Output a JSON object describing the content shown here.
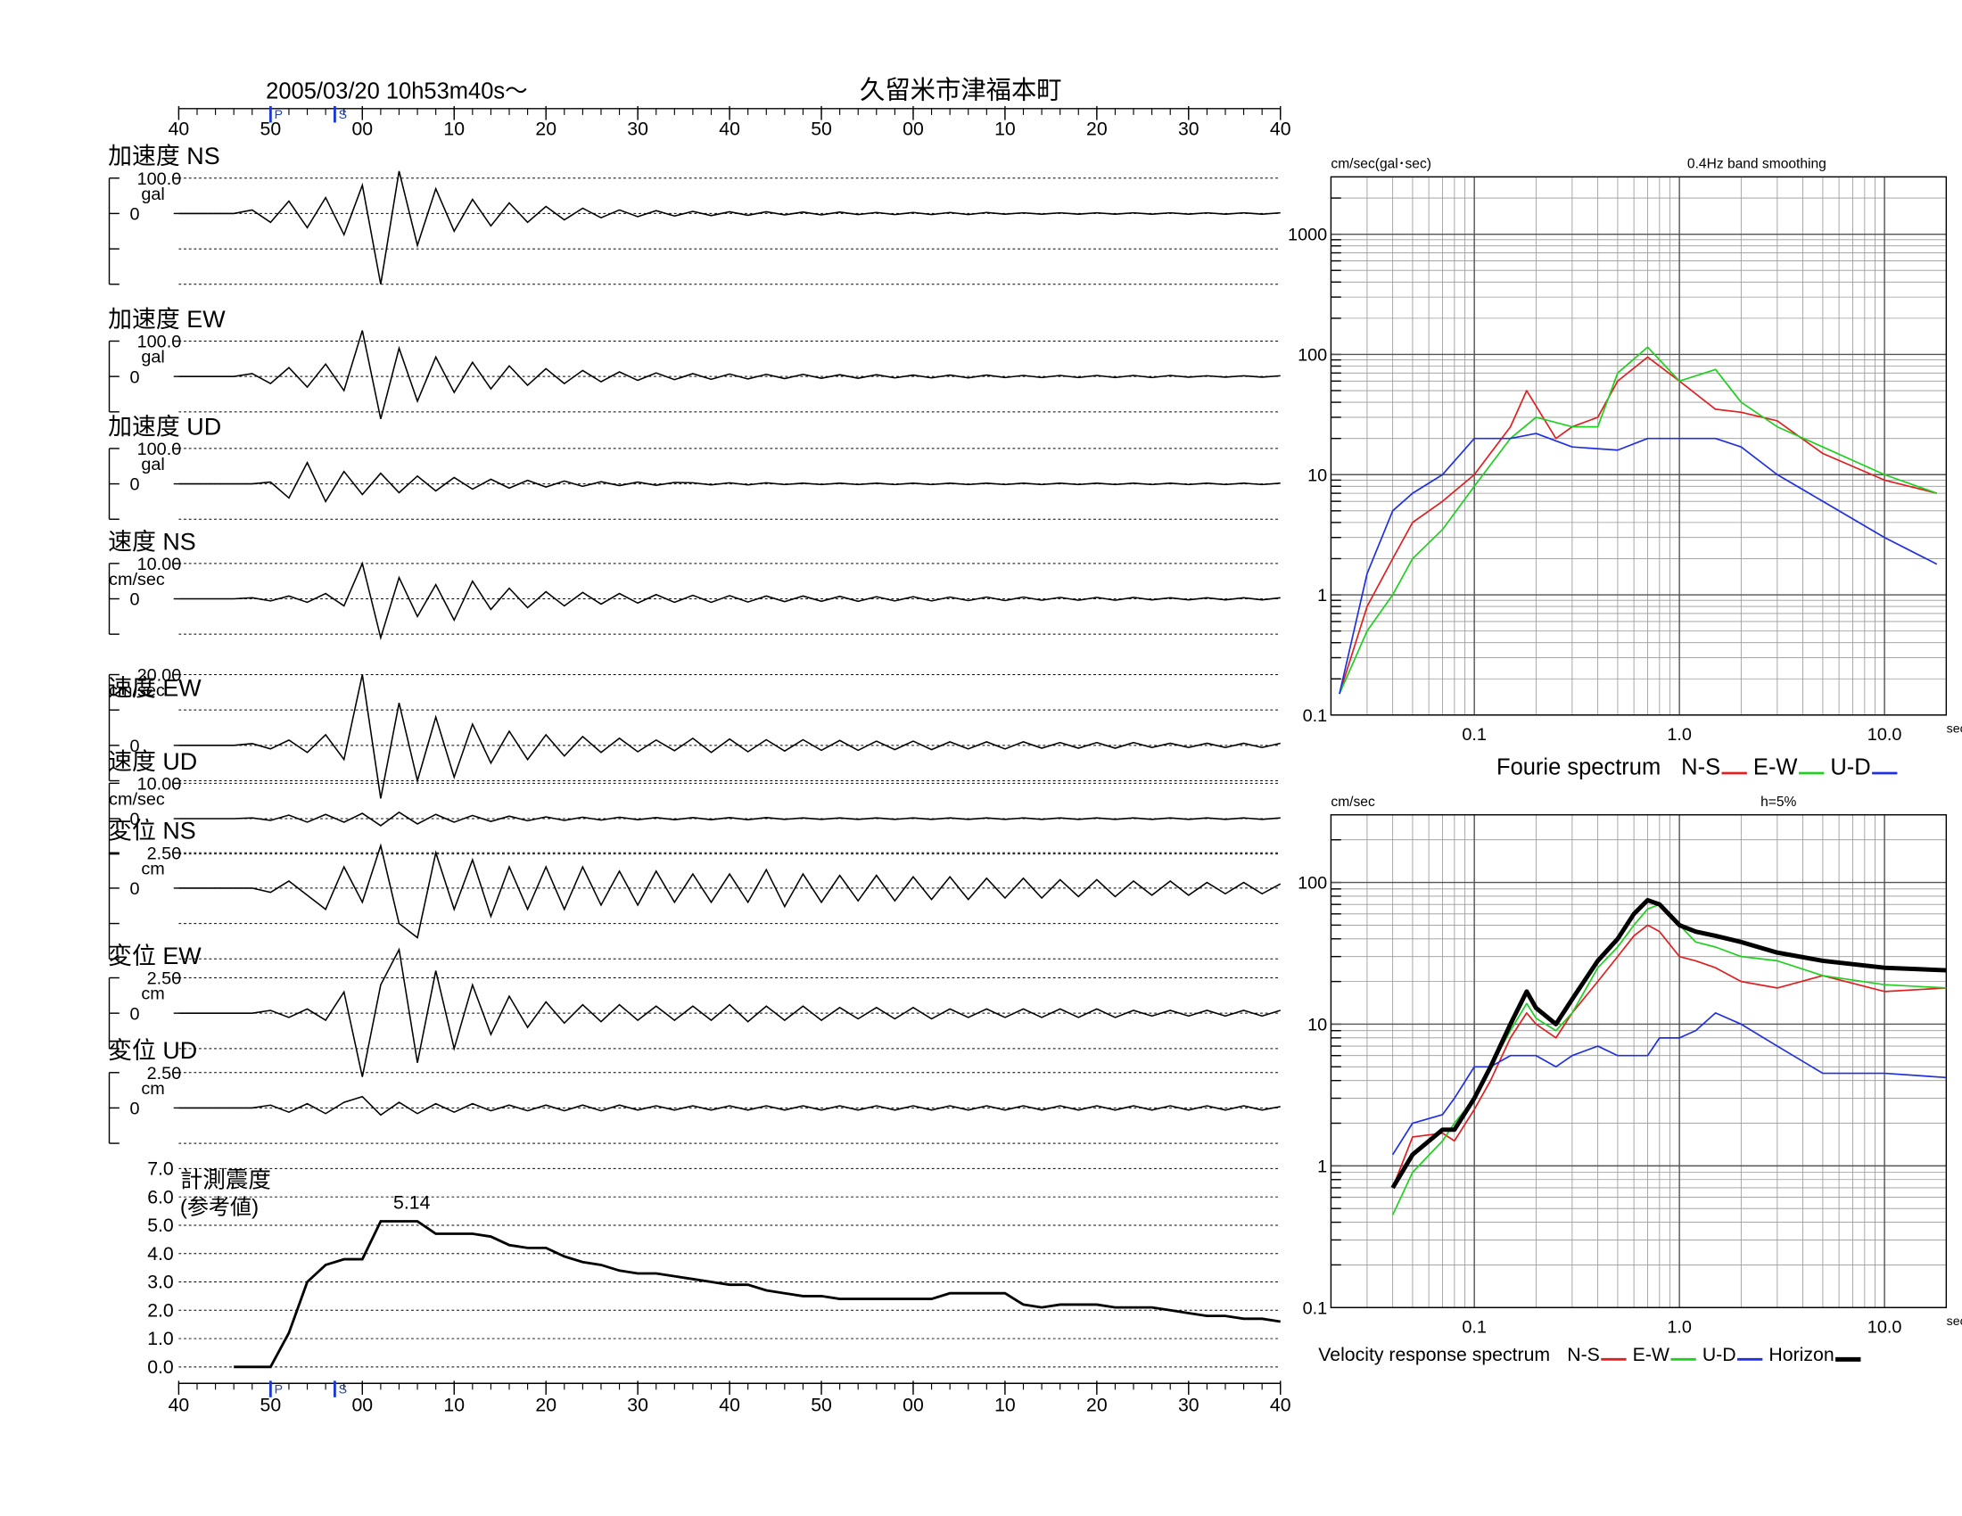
{
  "title": "2005/03/20  10h53m40s〜",
  "station": "久留米市津福本町",
  "time_axis": {
    "xlim": [
      40,
      160
    ],
    "xticks": [
      40,
      50,
      {
        "value": 60,
        "label": "00"
      },
      {
        "value": 70,
        "label": "10"
      },
      {
        "value": 80,
        "label": "20"
      },
      {
        "value": 90,
        "label": "30"
      },
      {
        "value": 100,
        "label": "40"
      },
      {
        "value": 110,
        "label": "50"
      },
      {
        "value": 120,
        "label": "00"
      },
      {
        "value": 130,
        "label": "10"
      },
      {
        "value": 140,
        "label": "20"
      },
      {
        "value": 150,
        "label": "30"
      },
      {
        "value": 160,
        "label": "40"
      }
    ],
    "x": [
      40,
      42,
      44,
      46,
      48,
      50,
      52,
      54,
      56,
      58,
      60,
      62,
      64,
      66,
      68,
      70,
      72,
      74,
      76,
      78,
      80,
      82,
      84,
      86,
      88,
      90,
      92,
      94,
      96,
      98,
      100,
      102,
      104,
      106,
      108,
      110,
      112,
      114,
      116,
      118,
      120,
      122,
      124,
      126,
      128,
      130,
      132,
      134,
      136,
      138,
      140,
      142,
      144,
      146,
      148,
      150,
      152,
      154,
      156,
      158,
      160
    ],
    "markers": [
      {
        "label": "P",
        "value": 50
      },
      {
        "label": "S",
        "value": 57
      }
    ]
  },
  "chart_data": [
    {
      "type": "wave",
      "title": "加速度 NS",
      "unit": "gal",
      "ylim": [
        -200,
        100
      ],
      "yticks": [
        {
          "value": 100,
          "label": "100.0"
        },
        0
      ],
      "values": [
        0,
        0,
        0,
        0,
        10,
        -25,
        35,
        -40,
        45,
        -60,
        80,
        -200,
        120,
        -90,
        70,
        -50,
        40,
        -35,
        30,
        -25,
        20,
        -18,
        15,
        -12,
        10,
        -9,
        8,
        -7,
        6,
        -6,
        5,
        -5,
        5,
        -4,
        4,
        -4,
        4,
        -3,
        3,
        -3,
        3,
        -3,
        3,
        -3,
        3,
        -2,
        2,
        -2,
        2,
        -2,
        2,
        -2,
        2,
        -2,
        2,
        -2,
        2,
        -2,
        2,
        -2,
        2
      ]
    },
    {
      "type": "wave",
      "title": "加速度 EW",
      "unit": "gal",
      "ylim": [
        -100,
        100
      ],
      "yticks": [
        {
          "value": 100,
          "label": "100.0"
        },
        0
      ],
      "values": [
        0,
        0,
        0,
        0,
        8,
        -20,
        25,
        -30,
        35,
        -40,
        130,
        -120,
        80,
        -70,
        55,
        -45,
        40,
        -35,
        30,
        -25,
        22,
        -20,
        17,
        -15,
        13,
        -11,
        10,
        -9,
        8,
        -8,
        7,
        -7,
        6,
        -6,
        6,
        -5,
        5,
        -5,
        5,
        -4,
        4,
        -4,
        4,
        -4,
        4,
        -3,
        3,
        -3,
        3,
        -3,
        3,
        -3,
        3,
        -3,
        3,
        -2,
        2,
        -2,
        2,
        -2,
        2
      ]
    },
    {
      "type": "wave",
      "title": "加速度 UD",
      "unit": "gal",
      "ylim": [
        -100,
        100
      ],
      "yticks": [
        {
          "value": 100,
          "label": "100.0"
        },
        0
      ],
      "values": [
        0,
        0,
        0,
        0,
        0,
        5,
        -40,
        60,
        -50,
        35,
        -30,
        30,
        -25,
        22,
        -20,
        18,
        -15,
        13,
        -12,
        10,
        -9,
        8,
        -7,
        6,
        -5,
        5,
        -4,
        4,
        3,
        -3,
        3,
        -3,
        3,
        -2,
        2,
        -2,
        2,
        -2,
        2,
        -2,
        2,
        -2,
        2,
        -2,
        2,
        -2,
        2,
        -2,
        2,
        -2,
        2,
        -2,
        2,
        -2,
        2,
        -2,
        2,
        -2,
        2,
        -2,
        2
      ]
    },
    {
      "type": "wave",
      "title": "速度 NS",
      "unit": "cm/sec",
      "ylim": [
        -10,
        10
      ],
      "yticks": [
        {
          "value": 10,
          "label": "10.00"
        },
        0
      ],
      "values": [
        0,
        0,
        0,
        0,
        0.3,
        -0.6,
        0.8,
        -1,
        1.5,
        -2,
        10,
        -11,
        6,
        -5,
        4,
        -6,
        5,
        -3,
        3,
        -2.5,
        2,
        -2,
        1.8,
        -1.5,
        1.5,
        -1.2,
        1.2,
        -1,
        1,
        -1,
        0.9,
        -0.9,
        0.8,
        -0.8,
        0.8,
        -0.7,
        0.7,
        -0.7,
        0.6,
        -0.6,
        0.6,
        -0.6,
        0.5,
        -0.5,
        0.5,
        -0.5,
        0.5,
        -0.4,
        0.4,
        -0.4,
        0.4,
        -0.4,
        0.4,
        -0.3,
        0.3,
        -0.3,
        0.3,
        -0.3,
        0.3,
        -0.3,
        0.3
      ]
    },
    {
      "type": "wave",
      "title": "速度 EW",
      "unit": "cm/sec",
      "ylim": [
        -10,
        20
      ],
      "yticks": [
        {
          "value": 20,
          "label": "20.00"
        },
        0
      ],
      "values": [
        0,
        0,
        0,
        0,
        0.5,
        -1,
        1.5,
        -2,
        3,
        -4,
        20,
        -15,
        12,
        -10,
        8,
        -9,
        6,
        -5,
        4,
        -4,
        3,
        -3,
        2.5,
        -2,
        2,
        -1.8,
        1.5,
        -1.5,
        2,
        -2,
        1.8,
        -1.8,
        1.6,
        -1.6,
        1.6,
        -1.4,
        1.4,
        -1.4,
        1.2,
        -1.2,
        1.2,
        -1.2,
        1,
        -1,
        1,
        -1,
        1,
        -0.8,
        0.8,
        -0.8,
        0.8,
        -0.8,
        0.8,
        -0.6,
        0.6,
        -0.6,
        0.6,
        -0.6,
        0.6,
        -0.6,
        0.6
      ]
    },
    {
      "type": "wave",
      "title": "速度 UD",
      "unit": "cm/sec",
      "ylim": [
        -10,
        10
      ],
      "yticks": [
        {
          "value": 10,
          "label": "10.00"
        },
        0
      ],
      "values": [
        0,
        0,
        0,
        0,
        0.2,
        -0.5,
        1,
        -1,
        1.2,
        -1,
        1.5,
        -2,
        1.8,
        -1.5,
        1.2,
        -1,
        0.9,
        -0.8,
        0.7,
        -0.6,
        0.5,
        -0.5,
        0.4,
        -0.4,
        0.4,
        -0.3,
        0.3,
        -0.3,
        0.3,
        -0.3,
        0.3,
        -0.3,
        0.3,
        -0.2,
        0.2,
        -0.2,
        0.2,
        -0.2,
        0.2,
        -0.2,
        0.2,
        -0.2,
        0.2,
        -0.2,
        0.2,
        -0.2,
        0.2,
        -0.2,
        0.2,
        -0.2,
        0.2,
        -0.2,
        0.2,
        -0.2,
        0.2,
        -0.2,
        0.2,
        -0.2,
        0.2,
        -0.2,
        0.2
      ]
    },
    {
      "type": "wave",
      "title": "変位 NS",
      "unit": "cm",
      "ylim": [
        -5,
        2.5
      ],
      "yticks": [
        {
          "value": 2.5,
          "label": "2.50"
        },
        0
      ],
      "values": [
        0,
        0,
        0,
        0,
        0,
        -0.3,
        0.5,
        -0.5,
        -1.5,
        1.5,
        -1,
        3,
        -2.5,
        -3.5,
        2.5,
        -1.5,
        2,
        -2,
        1.5,
        -1.5,
        1.5,
        -1.5,
        1.5,
        -1.2,
        1.2,
        -1.2,
        1.2,
        -1,
        1,
        -1,
        1,
        -1,
        1.3,
        -1.3,
        1,
        -1,
        0.9,
        -0.9,
        0.9,
        -0.9,
        0.8,
        -0.8,
        0.8,
        -0.8,
        0.7,
        -0.7,
        0.7,
        -0.7,
        0.6,
        -0.6,
        0.6,
        -0.6,
        0.5,
        -0.5,
        0.5,
        -0.5,
        0.4,
        -0.4,
        0.4,
        -0.4,
        0.3
      ]
    },
    {
      "type": "wave",
      "title": "変位 EW",
      "unit": "cm",
      "ylim": [
        -2.5,
        2.5
      ],
      "yticks": [
        {
          "value": 2.5,
          "label": "2.50"
        },
        0
      ],
      "values": [
        0,
        0,
        0,
        0,
        0,
        0.2,
        -0.3,
        0.3,
        -0.5,
        1.5,
        -4.5,
        2,
        4.5,
        -3.5,
        3,
        -2.5,
        2,
        -1.5,
        1.2,
        -1,
        0.8,
        -0.7,
        0.6,
        -0.6,
        0.6,
        -0.5,
        0.5,
        -0.5,
        0.5,
        -0.5,
        0.6,
        -0.6,
        0.5,
        -0.5,
        0.5,
        -0.5,
        0.4,
        -0.4,
        0.4,
        -0.4,
        0.4,
        -0.4,
        0.3,
        -0.3,
        0.3,
        -0.3,
        0.3,
        -0.3,
        0.3,
        -0.3,
        0.3,
        -0.3,
        0.2,
        -0.2,
        0.2,
        -0.2,
        0.2,
        -0.2,
        0.2,
        -0.2,
        0.2
      ]
    },
    {
      "type": "wave",
      "title": "変位 UD",
      "unit": "cm",
      "ylim": [
        -2.5,
        2.5
      ],
      "yticks": [
        {
          "value": 2.5,
          "label": "2.50"
        },
        0
      ],
      "values": [
        0,
        0,
        0,
        0,
        0,
        0.2,
        -0.3,
        0.3,
        -0.4,
        0.4,
        0.8,
        -0.5,
        0.4,
        -0.4,
        0.3,
        -0.3,
        0.3,
        -0.2,
        0.2,
        -0.2,
        0.2,
        -0.2,
        0.2,
        -0.2,
        0.2,
        -0.15,
        0.15,
        -0.15,
        0.15,
        -0.15,
        0.15,
        -0.15,
        0.15,
        -0.15,
        0.15,
        -0.15,
        0.15,
        -0.15,
        0.15,
        -0.15,
        0.15,
        -0.15,
        0.15,
        -0.15,
        0.15,
        -0.15,
        0.15,
        -0.15,
        0.15,
        -0.15,
        0.15,
        -0.15,
        0.15,
        -0.15,
        0.15,
        -0.15,
        0.15,
        -0.15,
        0.15,
        -0.15,
        0.1
      ]
    },
    {
      "type": "intensity",
      "title": "計測震度",
      "subtitle": "(参考値)",
      "annotation": "5.14",
      "ylim": [
        0,
        7
      ],
      "yticks": [
        {
          "value": 0,
          "label": "0.0"
        },
        {
          "value": 1,
          "label": "1.0"
        },
        {
          "value": 2,
          "label": "2.0"
        },
        {
          "value": 3,
          "label": "3.0"
        },
        {
          "value": 4,
          "label": "4.0"
        },
        {
          "value": 5,
          "label": "5.0"
        },
        {
          "value": 6,
          "label": "6.0"
        },
        {
          "value": 7,
          "label": "7.0"
        }
      ],
      "values": [
        null,
        null,
        null,
        0,
        0,
        0,
        1.2,
        3.0,
        3.6,
        3.8,
        3.8,
        5.14,
        5.14,
        5.14,
        4.7,
        4.7,
        4.7,
        4.6,
        4.3,
        4.2,
        4.2,
        3.9,
        3.7,
        3.6,
        3.4,
        3.3,
        3.3,
        3.2,
        3.1,
        3.0,
        2.9,
        2.9,
        2.7,
        2.6,
        2.5,
        2.5,
        2.4,
        2.4,
        2.4,
        2.4,
        2.4,
        2.4,
        2.6,
        2.6,
        2.6,
        2.6,
        2.2,
        2.1,
        2.2,
        2.2,
        2.2,
        2.1,
        2.1,
        2.1,
        2.0,
        1.9,
        1.8,
        1.8,
        1.7,
        1.7,
        1.6
      ]
    },
    {
      "type": "loglog",
      "ylabel": "cm/sec(gal･sec)",
      "note": "0.4Hz band smoothing",
      "xlabel": "sec",
      "legend_title": "Fourie spectrum",
      "xlim": [
        0.02,
        20
      ],
      "ylim": [
        0.1,
        3000
      ],
      "xticks": [
        0.1,
        {
          "value": 1,
          "label": "1.0"
        },
        {
          "value": 10,
          "label": "10.0"
        }
      ],
      "yticks": [
        0.1,
        1,
        10,
        100,
        1000
      ],
      "series": [
        {
          "name": "N-S",
          "color": "#e02020",
          "x": [
            0.022,
            0.03,
            0.04,
            0.05,
            0.07,
            0.1,
            0.15,
            0.18,
            0.25,
            0.3,
            0.4,
            0.5,
            0.7,
            1.0,
            1.5,
            2,
            3,
            5,
            10,
            18
          ],
          "values": [
            0.15,
            0.8,
            2,
            4,
            6,
            10,
            25,
            50,
            20,
            25,
            30,
            60,
            95,
            60,
            35,
            33,
            28,
            15,
            9,
            7
          ]
        },
        {
          "name": "E-W",
          "color": "#20d020",
          "x": [
            0.022,
            0.03,
            0.04,
            0.05,
            0.07,
            0.1,
            0.15,
            0.2,
            0.3,
            0.4,
            0.5,
            0.7,
            1.0,
            1.5,
            2,
            3,
            5,
            10,
            18
          ],
          "values": [
            0.15,
            0.5,
            1,
            2,
            3.5,
            8,
            20,
            30,
            25,
            25,
            70,
            115,
            60,
            75,
            40,
            25,
            17,
            10,
            7
          ]
        },
        {
          "name": "U-D",
          "color": "#2030e0",
          "x": [
            0.022,
            0.03,
            0.04,
            0.05,
            0.07,
            0.1,
            0.15,
            0.2,
            0.3,
            0.5,
            0.7,
            1.0,
            1.5,
            2,
            3,
            5,
            10,
            18
          ],
          "values": [
            0.15,
            1.5,
            5,
            7,
            10,
            20,
            20,
            22,
            17,
            16,
            20,
            20,
            20,
            17,
            10,
            6,
            3,
            1.8
          ]
        }
      ]
    },
    {
      "type": "loglog",
      "ylabel": "cm/sec",
      "note": "h=5%",
      "xlabel": "sec",
      "legend_title": "Velocity response spectrum",
      "xlim": [
        0.02,
        20
      ],
      "ylim": [
        0.1,
        300
      ],
      "xticks": [
        0.1,
        {
          "value": 1,
          "label": "1.0"
        },
        {
          "value": 10,
          "label": "10.0"
        }
      ],
      "yticks": [
        0.1,
        1,
        10,
        100
      ],
      "x": [
        0.04,
        0.05,
        0.07,
        0.08,
        0.1,
        0.12,
        0.15,
        0.18,
        0.2,
        0.25,
        0.3,
        0.4,
        0.5,
        0.6,
        0.7,
        0.8,
        1.0,
        1.2,
        1.5,
        2,
        3,
        5,
        10,
        20
      ],
      "series": [
        {
          "name": "N-S",
          "color": "#e02020",
          "values": [
            0.7,
            1.6,
            1.7,
            1.5,
            2.5,
            4,
            8,
            12,
            10,
            8,
            12,
            20,
            30,
            42,
            50,
            45,
            30,
            28,
            25,
            20,
            18,
            22,
            17,
            18
          ]
        },
        {
          "name": "E-W",
          "color": "#20d020",
          "values": [
            0.45,
            0.9,
            1.5,
            2,
            3,
            5,
            9,
            14,
            11,
            9,
            12,
            25,
            35,
            50,
            65,
            70,
            50,
            38,
            35,
            30,
            28,
            22,
            19,
            18
          ]
        },
        {
          "name": "U-D",
          "color": "#2030e0",
          "values": [
            1.2,
            2,
            2.3,
            3,
            5,
            5,
            6,
            6,
            6,
            5,
            6,
            7,
            6,
            6,
            6,
            8,
            8,
            9,
            12,
            10,
            7,
            4.5,
            4.5,
            4.2
          ]
        },
        {
          "name": "Horizon",
          "color": "#000000",
          "line_width": 3.5,
          "values": [
            0.7,
            1.2,
            1.8,
            1.8,
            3,
            5,
            10,
            17,
            13,
            10,
            15,
            28,
            40,
            60,
            75,
            70,
            50,
            45,
            42,
            38,
            32,
            28,
            25,
            24
          ]
        }
      ]
    }
  ]
}
